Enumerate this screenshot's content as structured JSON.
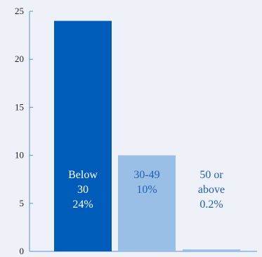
{
  "colors": {
    "background": "#eff1f9",
    "axis": "#5b8fd6",
    "bar_dark": "#005cb9",
    "bar_light": "#99bfe6",
    "label_on_dark": "#ffffff",
    "label_on_light": "#1f5fb4",
    "label_on_background": "#1f5fb4"
  },
  "chart_data": {
    "type": "bar",
    "categories": [
      "Below 30",
      "30-49",
      "50 or above"
    ],
    "values": [
      24,
      10,
      0.2
    ],
    "ylim": [
      0,
      25
    ],
    "yticks": [
      "0",
      "5",
      "10",
      "15",
      "20",
      "25"
    ],
    "grid": false,
    "legend": "none",
    "bar_labels": [
      [
        "Below",
        "30",
        "24%"
      ],
      [
        "30-49",
        "10%"
      ],
      [
        "50 or",
        "above",
        "0.2%"
      ]
    ]
  }
}
